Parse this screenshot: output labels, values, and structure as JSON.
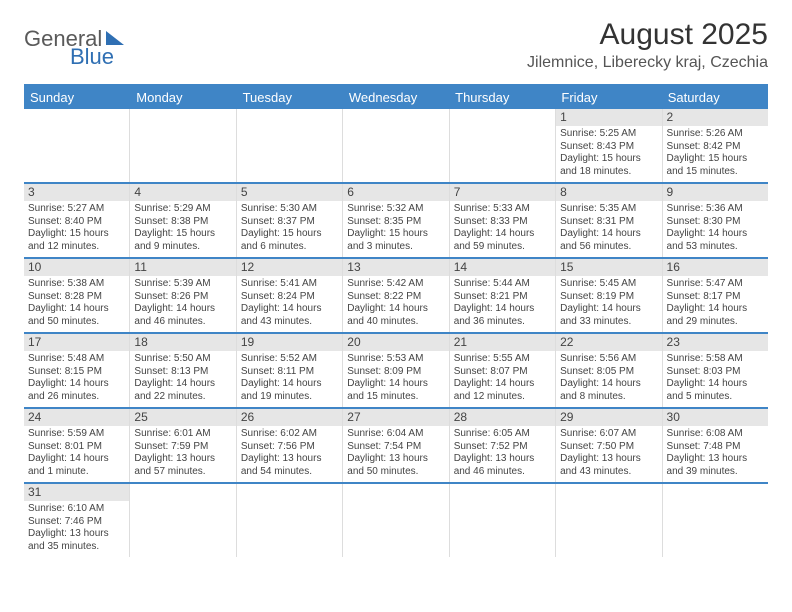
{
  "logo": {
    "part1": "General",
    "part2": "Blue"
  },
  "title": "August 2025",
  "location": "Jilemnice, Liberecky kraj, Czechia",
  "dow": [
    "Sunday",
    "Monday",
    "Tuesday",
    "Wednesday",
    "Thursday",
    "Friday",
    "Saturday"
  ],
  "colors": {
    "header_bar": "#3f85c6",
    "daynum_bg": "#e6e6e6",
    "logo_blue": "#2f6fb3"
  },
  "weeks": [
    [
      {
        "n": "",
        "lines": []
      },
      {
        "n": "",
        "lines": []
      },
      {
        "n": "",
        "lines": []
      },
      {
        "n": "",
        "lines": []
      },
      {
        "n": "",
        "lines": []
      },
      {
        "n": "1",
        "lines": [
          "Sunrise: 5:25 AM",
          "Sunset: 8:43 PM",
          "Daylight: 15 hours",
          "and 18 minutes."
        ]
      },
      {
        "n": "2",
        "lines": [
          "Sunrise: 5:26 AM",
          "Sunset: 8:42 PM",
          "Daylight: 15 hours",
          "and 15 minutes."
        ]
      }
    ],
    [
      {
        "n": "3",
        "lines": [
          "Sunrise: 5:27 AM",
          "Sunset: 8:40 PM",
          "Daylight: 15 hours",
          "and 12 minutes."
        ]
      },
      {
        "n": "4",
        "lines": [
          "Sunrise: 5:29 AM",
          "Sunset: 8:38 PM",
          "Daylight: 15 hours",
          "and 9 minutes."
        ]
      },
      {
        "n": "5",
        "lines": [
          "Sunrise: 5:30 AM",
          "Sunset: 8:37 PM",
          "Daylight: 15 hours",
          "and 6 minutes."
        ]
      },
      {
        "n": "6",
        "lines": [
          "Sunrise: 5:32 AM",
          "Sunset: 8:35 PM",
          "Daylight: 15 hours",
          "and 3 minutes."
        ]
      },
      {
        "n": "7",
        "lines": [
          "Sunrise: 5:33 AM",
          "Sunset: 8:33 PM",
          "Daylight: 14 hours",
          "and 59 minutes."
        ]
      },
      {
        "n": "8",
        "lines": [
          "Sunrise: 5:35 AM",
          "Sunset: 8:31 PM",
          "Daylight: 14 hours",
          "and 56 minutes."
        ]
      },
      {
        "n": "9",
        "lines": [
          "Sunrise: 5:36 AM",
          "Sunset: 8:30 PM",
          "Daylight: 14 hours",
          "and 53 minutes."
        ]
      }
    ],
    [
      {
        "n": "10",
        "lines": [
          "Sunrise: 5:38 AM",
          "Sunset: 8:28 PM",
          "Daylight: 14 hours",
          "and 50 minutes."
        ]
      },
      {
        "n": "11",
        "lines": [
          "Sunrise: 5:39 AM",
          "Sunset: 8:26 PM",
          "Daylight: 14 hours",
          "and 46 minutes."
        ]
      },
      {
        "n": "12",
        "lines": [
          "Sunrise: 5:41 AM",
          "Sunset: 8:24 PM",
          "Daylight: 14 hours",
          "and 43 minutes."
        ]
      },
      {
        "n": "13",
        "lines": [
          "Sunrise: 5:42 AM",
          "Sunset: 8:22 PM",
          "Daylight: 14 hours",
          "and 40 minutes."
        ]
      },
      {
        "n": "14",
        "lines": [
          "Sunrise: 5:44 AM",
          "Sunset: 8:21 PM",
          "Daylight: 14 hours",
          "and 36 minutes."
        ]
      },
      {
        "n": "15",
        "lines": [
          "Sunrise: 5:45 AM",
          "Sunset: 8:19 PM",
          "Daylight: 14 hours",
          "and 33 minutes."
        ]
      },
      {
        "n": "16",
        "lines": [
          "Sunrise: 5:47 AM",
          "Sunset: 8:17 PM",
          "Daylight: 14 hours",
          "and 29 minutes."
        ]
      }
    ],
    [
      {
        "n": "17",
        "lines": [
          "Sunrise: 5:48 AM",
          "Sunset: 8:15 PM",
          "Daylight: 14 hours",
          "and 26 minutes."
        ]
      },
      {
        "n": "18",
        "lines": [
          "Sunrise: 5:50 AM",
          "Sunset: 8:13 PM",
          "Daylight: 14 hours",
          "and 22 minutes."
        ]
      },
      {
        "n": "19",
        "lines": [
          "Sunrise: 5:52 AM",
          "Sunset: 8:11 PM",
          "Daylight: 14 hours",
          "and 19 minutes."
        ]
      },
      {
        "n": "20",
        "lines": [
          "Sunrise: 5:53 AM",
          "Sunset: 8:09 PM",
          "Daylight: 14 hours",
          "and 15 minutes."
        ]
      },
      {
        "n": "21",
        "lines": [
          "Sunrise: 5:55 AM",
          "Sunset: 8:07 PM",
          "Daylight: 14 hours",
          "and 12 minutes."
        ]
      },
      {
        "n": "22",
        "lines": [
          "Sunrise: 5:56 AM",
          "Sunset: 8:05 PM",
          "Daylight: 14 hours",
          "and 8 minutes."
        ]
      },
      {
        "n": "23",
        "lines": [
          "Sunrise: 5:58 AM",
          "Sunset: 8:03 PM",
          "Daylight: 14 hours",
          "and 5 minutes."
        ]
      }
    ],
    [
      {
        "n": "24",
        "lines": [
          "Sunrise: 5:59 AM",
          "Sunset: 8:01 PM",
          "Daylight: 14 hours",
          "and 1 minute."
        ]
      },
      {
        "n": "25",
        "lines": [
          "Sunrise: 6:01 AM",
          "Sunset: 7:59 PM",
          "Daylight: 13 hours",
          "and 57 minutes."
        ]
      },
      {
        "n": "26",
        "lines": [
          "Sunrise: 6:02 AM",
          "Sunset: 7:56 PM",
          "Daylight: 13 hours",
          "and 54 minutes."
        ]
      },
      {
        "n": "27",
        "lines": [
          "Sunrise: 6:04 AM",
          "Sunset: 7:54 PM",
          "Daylight: 13 hours",
          "and 50 minutes."
        ]
      },
      {
        "n": "28",
        "lines": [
          "Sunrise: 6:05 AM",
          "Sunset: 7:52 PM",
          "Daylight: 13 hours",
          "and 46 minutes."
        ]
      },
      {
        "n": "29",
        "lines": [
          "Sunrise: 6:07 AM",
          "Sunset: 7:50 PM",
          "Daylight: 13 hours",
          "and 43 minutes."
        ]
      },
      {
        "n": "30",
        "lines": [
          "Sunrise: 6:08 AM",
          "Sunset: 7:48 PM",
          "Daylight: 13 hours",
          "and 39 minutes."
        ]
      }
    ],
    [
      {
        "n": "31",
        "lines": [
          "Sunrise: 6:10 AM",
          "Sunset: 7:46 PM",
          "Daylight: 13 hours",
          "and 35 minutes."
        ]
      },
      {
        "n": "",
        "lines": []
      },
      {
        "n": "",
        "lines": []
      },
      {
        "n": "",
        "lines": []
      },
      {
        "n": "",
        "lines": []
      },
      {
        "n": "",
        "lines": []
      },
      {
        "n": "",
        "lines": []
      }
    ]
  ]
}
